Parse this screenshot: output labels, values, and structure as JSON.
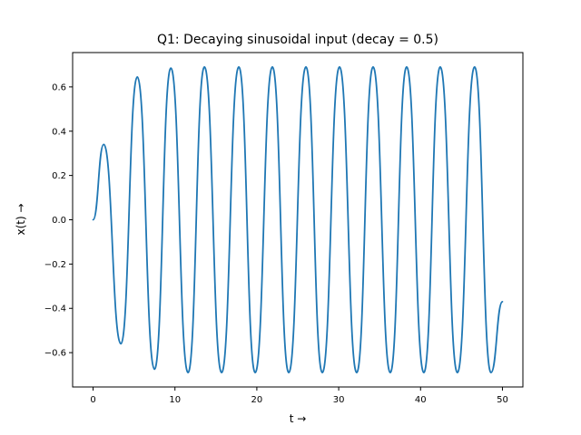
{
  "chart_data": {
    "type": "line",
    "title": "Q1: Decaying sinusoidal input (decay = 0.5)",
    "xlabel": "t →",
    "ylabel": "x(t)  →",
    "xlim": [
      -2.5,
      52.5
    ],
    "ylim": [
      -0.755,
      0.755
    ],
    "x_ticks": [
      0,
      10,
      20,
      30,
      40,
      50
    ],
    "y_ticks": [
      -0.6,
      -0.4,
      -0.2,
      0.0,
      0.2,
      0.4,
      0.6
    ],
    "x_tick_labels": [
      "0",
      "10",
      "20",
      "30",
      "40",
      "50"
    ],
    "y_tick_labels": [
      "−0.6",
      "−0.4",
      "−0.2",
      "0.0",
      "0.2",
      "0.4",
      "0.6"
    ],
    "grid": false,
    "series": [
      {
        "color": "#1f77b4",
        "x": [
          0,
          1.3,
          3.4,
          5.4,
          7.5,
          9.5,
          11.6,
          13.6,
          15.7,
          17.8,
          19.8,
          21.9,
          23.9,
          26.0,
          28.0,
          30.1,
          32.2,
          34.2,
          36.3,
          38.3,
          40.4,
          42.4,
          44.5,
          46.6,
          48.6,
          50.0
        ],
        "y": [
          0.0,
          0.34,
          -0.56,
          0.645,
          -0.675,
          0.685,
          -0.69,
          0.69,
          -0.69,
          0.69,
          -0.69,
          0.69,
          -0.69,
          0.69,
          -0.69,
          0.69,
          -0.69,
          0.69,
          -0.69,
          0.69,
          -0.69,
          0.69,
          -0.69,
          0.69,
          -0.69,
          -0.37
        ]
      }
    ]
  }
}
